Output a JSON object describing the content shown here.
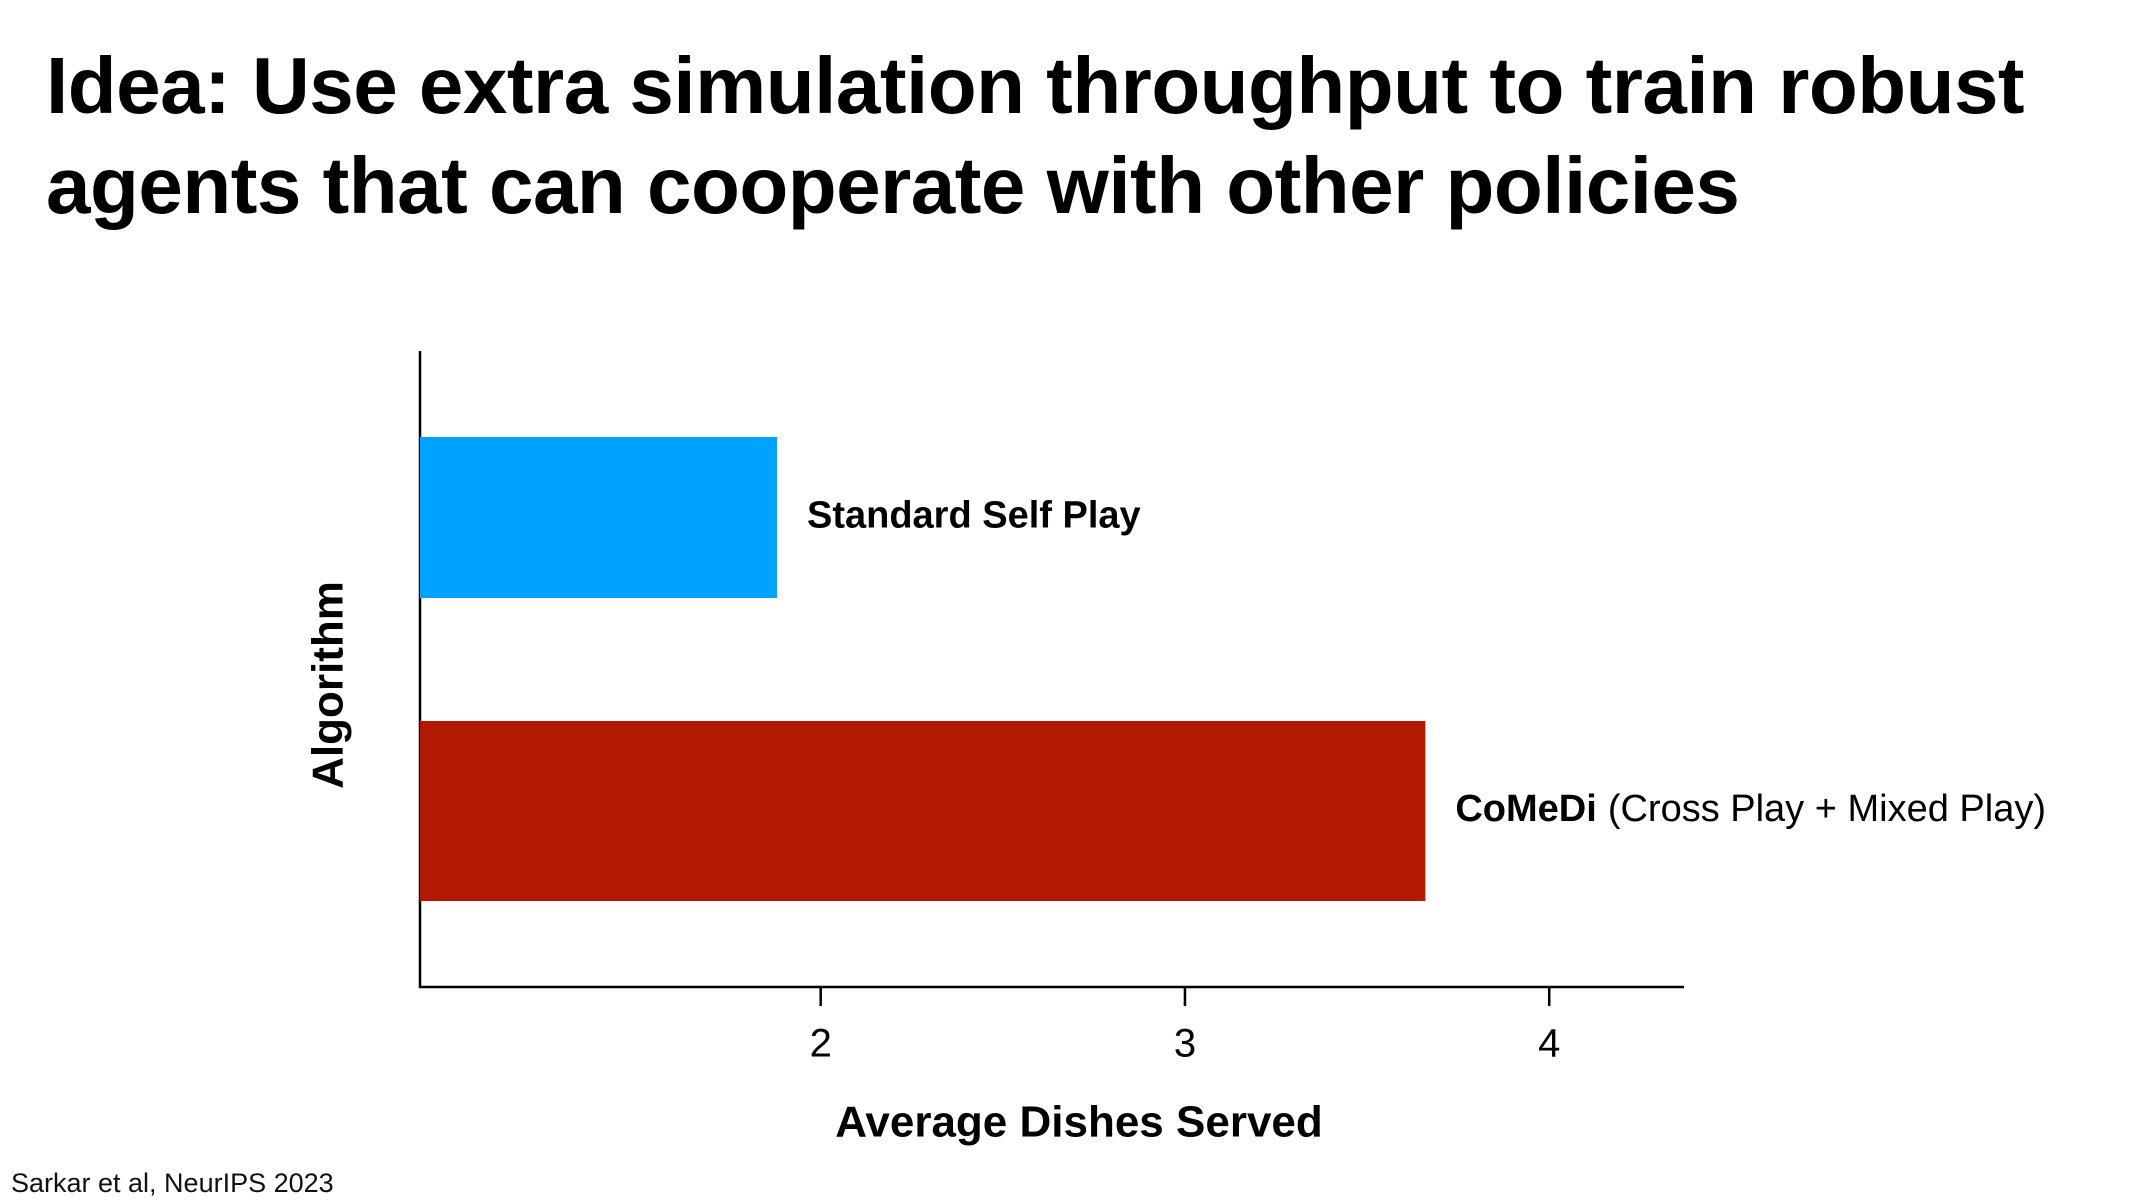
{
  "title": "Idea: Use extra simulation throughput to train robust agents that can cooperate with other policies",
  "citation": "Sarkar et al, NeurIPS 2023",
  "chart_data": {
    "type": "barh",
    "categories": [
      "Standard Self Play",
      "CoMeDi"
    ],
    "category_notes": [
      null,
      "(Cross Play + Mixed Play)"
    ],
    "values": [
      1.88,
      3.66
    ],
    "colors": [
      "#00a2ff",
      "#b31800"
    ],
    "xlabel": "Average Dishes Served",
    "ylabel": "Algorithm",
    "xlim": [
      0.9,
      4.37
    ],
    "xticks": [
      2,
      3,
      4
    ],
    "grid": false
  }
}
